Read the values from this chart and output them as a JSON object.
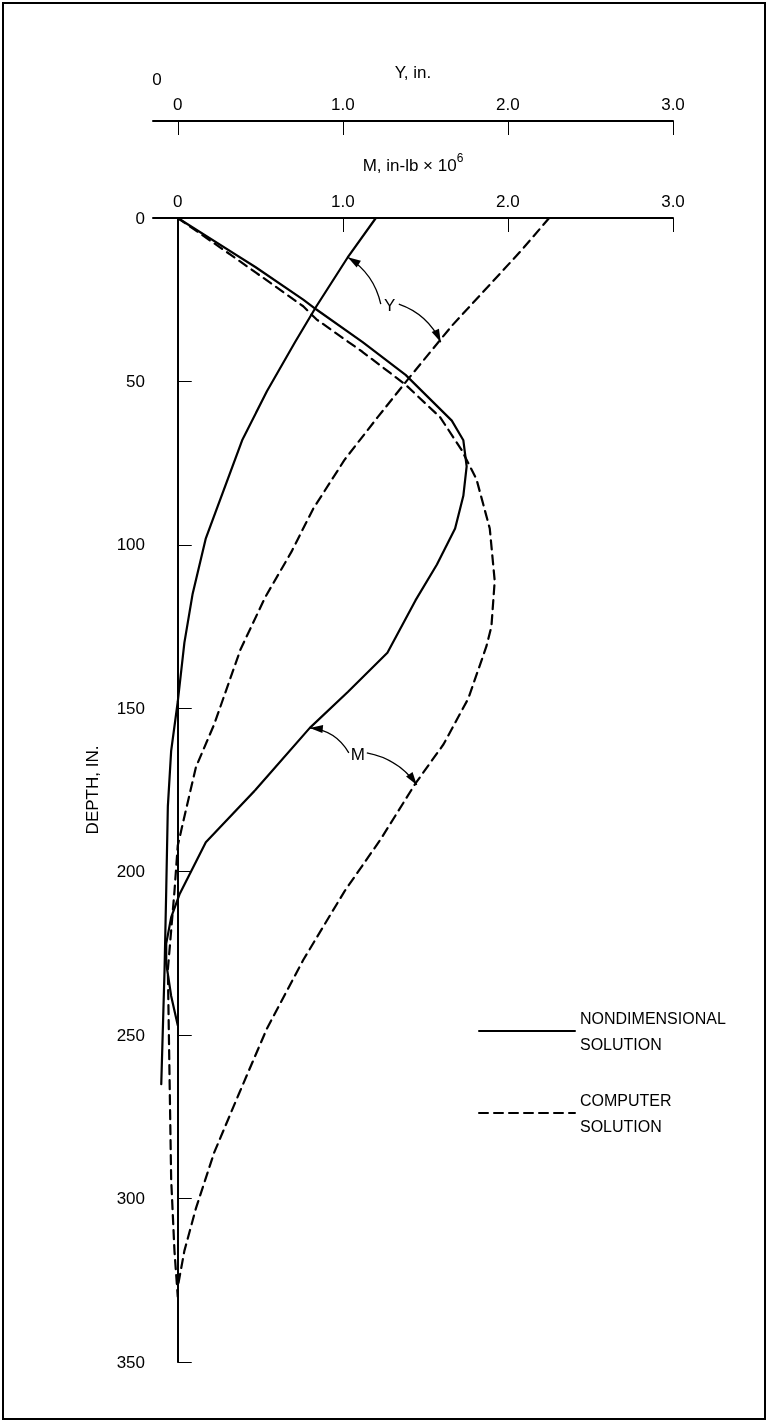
{
  "chart_data": {
    "type": "line",
    "xlabel": "M, in-lb × 10$^{6}$",
    "x2label": "Y, in.",
    "ylabel": "DEPTH, IN.",
    "xlim": [
      -0.15,
      3
    ],
    "xticks": [
      0,
      {
        "value": 1,
        "label": "1.0"
      },
      {
        "value": 2,
        "label": "2.0"
      },
      {
        "value": 3,
        "label": "3.0"
      }
    ],
    "x2lim": [
      -0.15,
      3
    ],
    "x2ticks": [
      0,
      {
        "value": 1,
        "label": "1.0"
      },
      {
        "value": 2,
        "label": "2.0"
      },
      {
        "value": 3,
        "label": "3.0"
      }
    ],
    "ylim": [
      350,
      0
    ],
    "yticks": [
      0,
      50,
      100,
      150,
      200,
      250,
      300,
      350
    ],
    "grid": false,
    "legend": "right",
    "marker": "none",
    "series": [
      {
        "name": "NONDIMENSIONAL SOLUTION",
        "color": "#000000",
        "line_style": "solid",
        "x": [
          1.2,
          1.03,
          0.84,
          0.71,
          0.54,
          0.39,
          0.28,
          0.17,
          0.09,
          0.04,
          0.0,
          -0.04,
          -0.06,
          -0.07,
          -0.08,
          -0.1
        ],
        "values": [
          0,
          12,
          27,
          38,
          53,
          68,
          83,
          98,
          115,
          130,
          148,
          163,
          180,
          206,
          230,
          265
        ]
      },
      {
        "name": "COMPUTER SOLUTION",
        "color": "#000000",
        "line_style": "dashed",
        "x": [
          2.25,
          2.08,
          1.66,
          1.4,
          1.21,
          1.01,
          0.82,
          0.69,
          0.53,
          0.38,
          0.22,
          0.11,
          0.05,
          0.0,
          -0.02,
          -0.06,
          -0.05,
          -0.04,
          -0.02,
          0.0
        ],
        "values": [
          0,
          10,
          33,
          49,
          61,
          74,
          89,
          102,
          116,
          132,
          155,
          168,
          181,
          192,
          206,
          230,
          262,
          294,
          316,
          330
        ]
      },
      {
        "color": "#000000",
        "line_style": "solid",
        "x": [
          0,
          0.47,
          0.76,
          0.84,
          1.12,
          1.38,
          1.66,
          1.73,
          1.75,
          1.73,
          1.68,
          1.57,
          1.44,
          1.27,
          1.03,
          0.8,
          0.47,
          0.17,
          0.01,
          -0.04,
          -0.07,
          -0.07,
          -0.04,
          0.0
        ],
        "values": [
          0,
          15,
          25,
          28,
          38,
          48,
          62,
          68,
          76,
          85,
          95,
          106,
          117,
          133,
          145,
          156,
          175,
          191,
          207,
          214,
          222,
          228,
          238,
          247
        ]
      },
      {
        "color": "#000000",
        "line_style": "dashed",
        "x": [
          0,
          0.37,
          0.76,
          0.84,
          1.12,
          1.38,
          1.59,
          1.72,
          1.81,
          1.89,
          1.92,
          1.9,
          1.87,
          1.76,
          1.61,
          1.44,
          1.23,
          1.01,
          0.76,
          0.54,
          0.37,
          0.22,
          0.11,
          0.04,
          0.0
        ],
        "values": [
          0,
          13,
          27,
          31,
          41,
          51,
          61,
          71,
          80,
          95,
          111,
          125,
          131,
          147,
          161,
          173,
          190,
          206,
          227,
          248,
          268,
          286,
          303,
          316,
          327
        ]
      }
    ],
    "annotations": [
      "0",
      {
        "text": "Y",
        "x": 1.03,
        "y": 12
      },
      {
        "text": "M",
        "x": 0.8,
        "y": 156
      }
    ]
  }
}
